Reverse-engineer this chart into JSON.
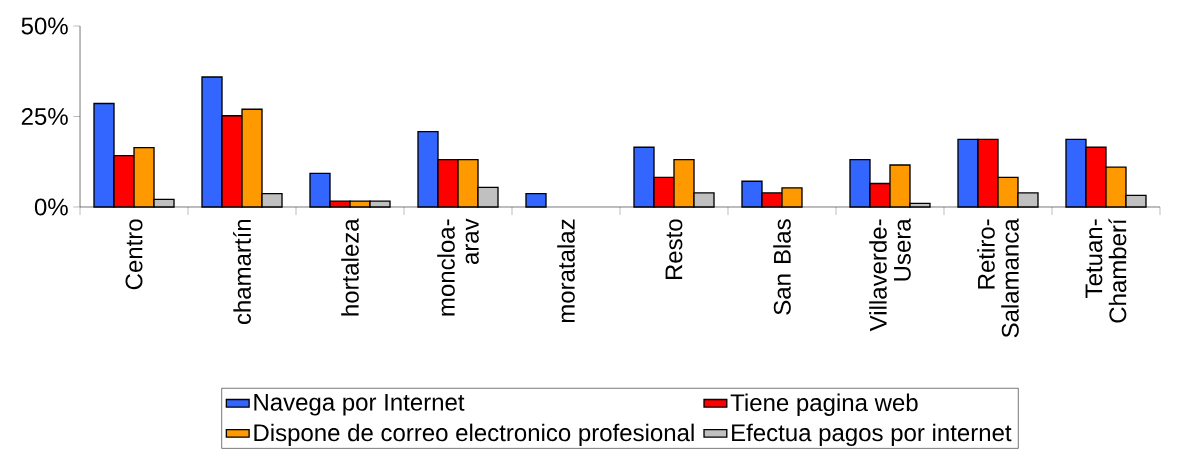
{
  "chart_data": {
    "type": "bar",
    "categories": [
      "Centro",
      "chamartín",
      "hortaleza",
      "moncloa-arav",
      "moratalaz",
      "Resto",
      "San Blas",
      "Villaverde-Usera",
      "Retiro-Salamanca",
      "Tetuan-Chamberí"
    ],
    "series": [
      {
        "name": "Navega por Internet",
        "color": "#3366ff",
        "values": [
          28.6,
          35.9,
          9.3,
          20.8,
          3.7,
          16.5,
          7.1,
          13.1,
          18.7,
          18.7
        ]
      },
      {
        "name": "Tiene pagina web",
        "color": "#ff0000",
        "values": [
          14.2,
          25.2,
          1.6,
          13.1,
          0,
          8.2,
          3.9,
          6.5,
          18.7,
          16.5
        ]
      },
      {
        "name": "Dispone de correo electronico profesional",
        "color": "#ff9900",
        "values": [
          16.4,
          27.0,
          1.6,
          13.1,
          0,
          13.1,
          5.3,
          11.6,
          8.2,
          11.0
        ]
      },
      {
        "name": "Efectua pagos por internet",
        "color": "#c0c0c0",
        "values": [
          2.1,
          3.7,
          1.6,
          5.4,
          0,
          3.9,
          0,
          1.0,
          3.9,
          3.2
        ]
      }
    ],
    "ylim": [
      0,
      50
    ],
    "yticks": [
      {
        "value": 0,
        "label": "0%"
      },
      {
        "value": 25,
        "label": "25%"
      },
      {
        "value": 50,
        "label": "50%"
      }
    ],
    "legend": "bottom"
  }
}
